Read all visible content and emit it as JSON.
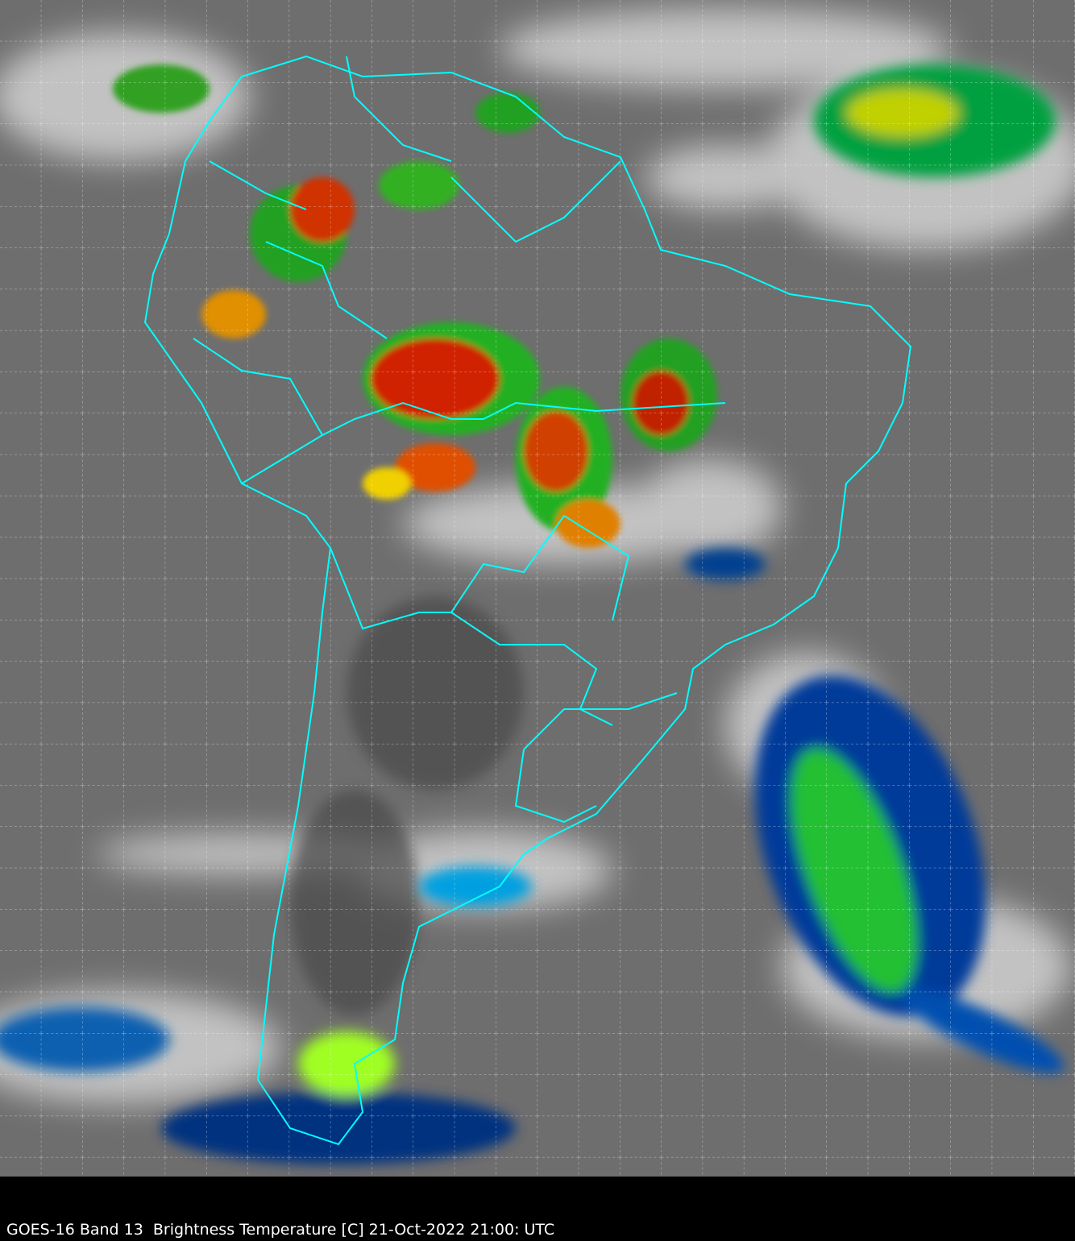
{
  "caption": "GOES-16 Band 13  Brightness Temperature [C] 21-Oct-2022 21:00: UTC",
  "colors": {
    "background_gray": "#6e6e6e",
    "border_lines": "#00ffff",
    "grid": "#ffffff",
    "cold_cloud_scale": [
      "#ffffff",
      "#00c8ff",
      "#003090",
      "#00ff00",
      "#ffff00",
      "#ff0000",
      "#800000",
      "#c0c0c0"
    ]
  }
}
